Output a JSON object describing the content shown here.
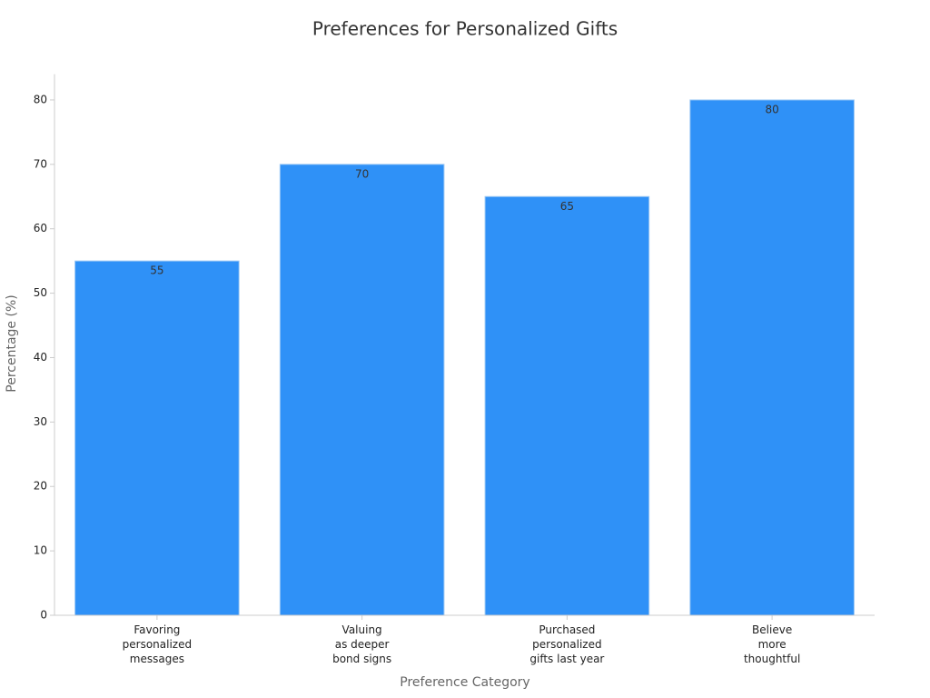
{
  "chart_data": {
    "type": "bar",
    "title": "Preferences for Personalized Gifts",
    "x_label": "Preference Category",
    "y_label": "Percentage (%)",
    "categories": [
      [
        "Favoring",
        "personalized",
        "messages"
      ],
      [
        "Valuing",
        "as deeper",
        "bond signs"
      ],
      [
        "Purchased",
        "personalized",
        "gifts last year"
      ],
      [
        "Believe",
        "more",
        "thoughtful"
      ]
    ],
    "values": [
      55,
      70,
      65,
      80
    ],
    "color": "#2f91f7",
    "ylim": [
      0,
      84
    ],
    "yticks": [
      0,
      10,
      20,
      30,
      40,
      50,
      60,
      70,
      80
    ],
    "grid": false
  }
}
